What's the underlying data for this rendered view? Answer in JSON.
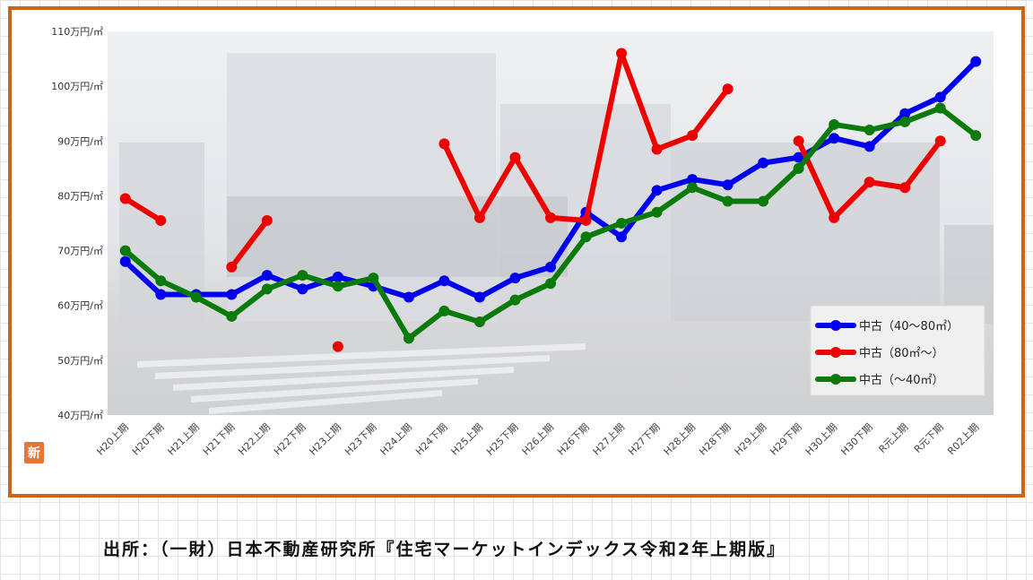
{
  "chart_data": {
    "type": "line",
    "categories": [
      "H20上期",
      "H20下期",
      "H21上期",
      "H21下期",
      "H22上期",
      "H22下期",
      "H23上期",
      "H23下期",
      "H24上期",
      "H24下期",
      "H25上期",
      "H25下期",
      "H26上期",
      "H26下期",
      "H27上期",
      "H27下期",
      "H28上期",
      "H28下期",
      "H29上期",
      "H29下期",
      "H30上期",
      "H30下期",
      "R元上期",
      "R元下期",
      "R02上期"
    ],
    "y_ticks": [
      "40万円/㎡",
      "50万円/㎡",
      "60万円/㎡",
      "70万円/㎡",
      "80万円/㎡",
      "90万円/㎡",
      "100万円/㎡",
      "110万円/㎡"
    ],
    "ylim": [
      40,
      110
    ],
    "series": [
      {
        "name": "中古（40～80㎡）",
        "color": "#0000ee",
        "values": [
          68,
          62,
          62,
          62,
          65.5,
          63,
          65.2,
          63.5,
          61.5,
          64.5,
          61.5,
          65,
          67,
          77,
          72.5,
          81,
          83,
          82,
          86,
          87,
          90.5,
          89,
          95,
          98,
          104.5
        ]
      },
      {
        "name": "中古（80㎡～）",
        "color": "#ee0000",
        "values": [
          79.5,
          75.5,
          null,
          67,
          75.5,
          null,
          52.5,
          null,
          null,
          89.5,
          76,
          87,
          76,
          75.5,
          106,
          88.5,
          91,
          99.5,
          null,
          90,
          76,
          82.5,
          81.5,
          90,
          null
        ]
      },
      {
        "name": "中古（～40㎡）",
        "color": "#0a7a0a",
        "values": [
          70,
          64.5,
          61.5,
          58,
          63,
          65.5,
          63.5,
          65,
          54,
          59,
          57,
          61,
          64,
          72.5,
          75,
          77,
          81.5,
          79,
          79,
          85,
          93,
          92,
          93.5,
          96,
          91
        ]
      }
    ],
    "legend_position": "bottom-right"
  },
  "badge_text": "新",
  "source_note": "出所：（一財）日本不動産研究所『住宅マーケットインデックス令和2年上期版』"
}
